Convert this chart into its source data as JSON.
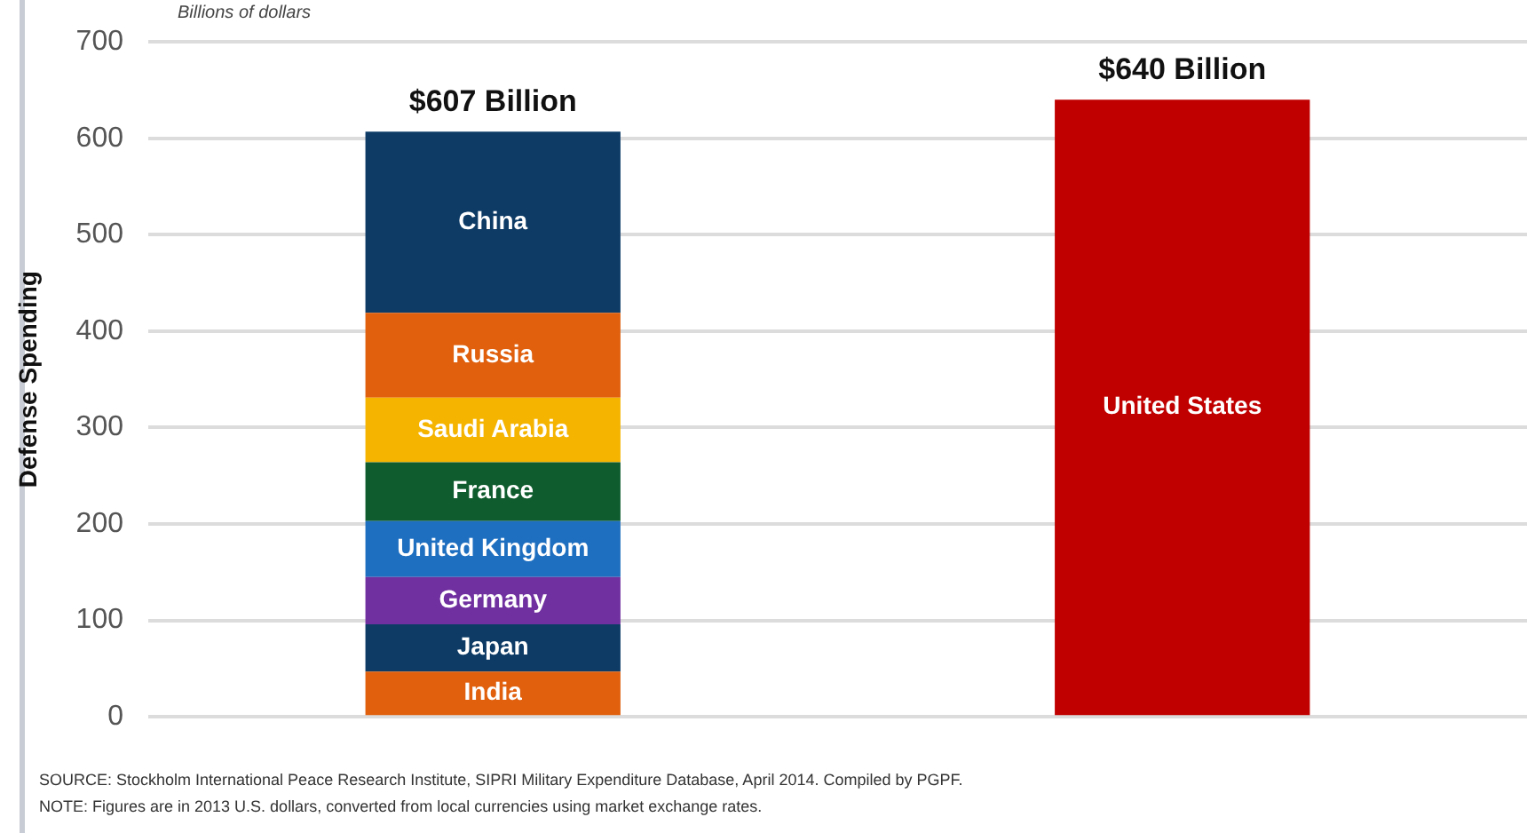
{
  "chart_data": {
    "type": "bar",
    "subtitle": "Billions of dollars",
    "ylabel": "Defense Spending",
    "categories": [
      null,
      null
    ],
    "stacked": true,
    "series": [
      {
        "name": "India",
        "color": "#e0600e",
        "values": [
          47,
          null
        ]
      },
      {
        "name": "Japan",
        "color": "#0d3b66",
        "values": [
          49,
          null
        ]
      },
      {
        "name": "Germany",
        "color": "#7030a0",
        "values": [
          49,
          null
        ]
      },
      {
        "name": "United Kingdom",
        "color": "#1f6fc0",
        "values": [
          58,
          null
        ]
      },
      {
        "name": "France",
        "color": "#0f5c2e",
        "values": [
          61,
          null
        ]
      },
      {
        "name": "Saudi Arabia",
        "color": "#f5b400",
        "values": [
          67,
          null
        ]
      },
      {
        "name": "Russia",
        "color": "#e0600e",
        "values": [
          88,
          null
        ]
      },
      {
        "name": "China",
        "color": "#0d3b66",
        "values": [
          188,
          null
        ]
      },
      {
        "name": "United States",
        "color": "#c00000",
        "values": [
          null,
          640
        ]
      }
    ],
    "totals": [
      "$607 Billion",
      "$640 Billion"
    ],
    "ylim": [
      0,
      700
    ],
    "yticks": [
      0,
      100,
      200,
      300,
      400,
      500,
      600,
      700
    ],
    "grid": "y",
    "legend": false,
    "annotations": [
      "SOURCE: Stockholm International Peace Research Institute, SIPRI Military Expenditure Database, April 2014. Compiled by PGPF.",
      "NOTE: Figures are in 2013 U.S. dollars, converted from local currencies using market exchange rates."
    ]
  }
}
